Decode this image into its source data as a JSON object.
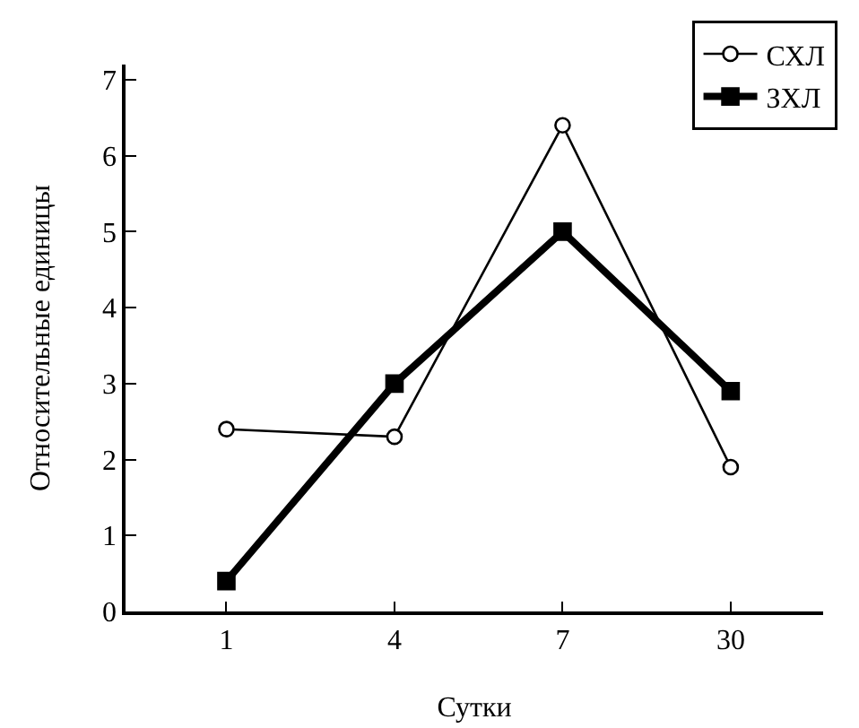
{
  "chart_data": {
    "type": "line",
    "xlabel": "Сутки",
    "ylabel": "Относительные единицы",
    "categories": [
      "1",
      "4",
      "7",
      "30"
    ],
    "series": [
      {
        "name": "СХЛ",
        "color": "#000000",
        "marker": "circle",
        "values": [
          2.4,
          2.3,
          6.4,
          1.9
        ]
      },
      {
        "name": "ЗХЛ",
        "color": "#000000",
        "marker": "square",
        "values": [
          0.4,
          3.0,
          5.0,
          2.9
        ]
      }
    ],
    "ylim": [
      0,
      7.2
    ],
    "yticks": [
      0,
      1,
      2,
      3,
      4,
      5,
      6,
      7
    ],
    "grid": false,
    "legend": "top right",
    "line_style": "solid"
  }
}
